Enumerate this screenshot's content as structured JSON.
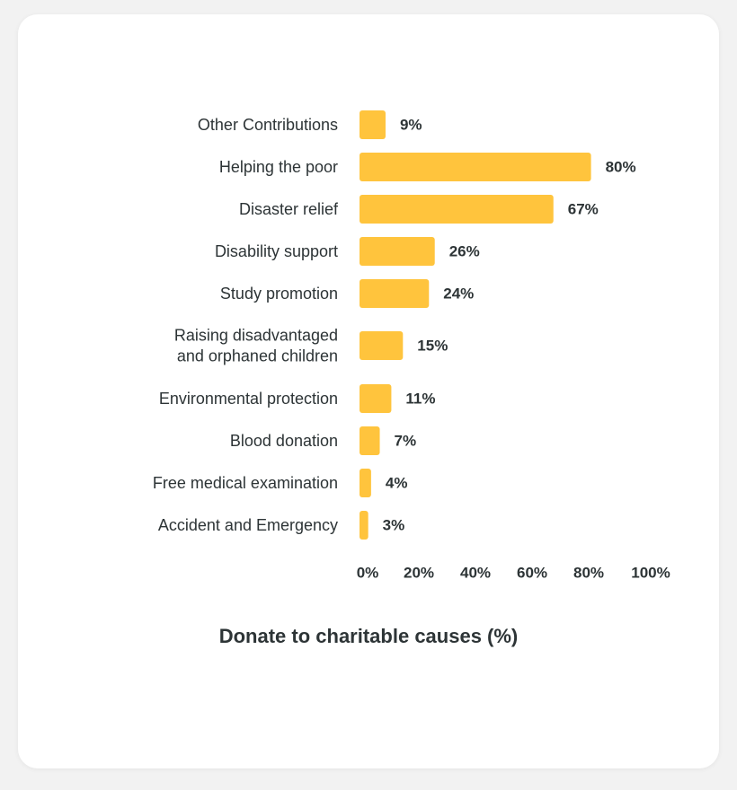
{
  "chart_data": {
    "type": "bar",
    "orientation": "horizontal",
    "title": "Donate to charitable causes (%)",
    "categories": [
      "Other Contributions",
      "Helping the poor",
      "Disaster relief",
      "Disability support",
      "Study promotion",
      "Raising disadvantaged and orphaned children",
      "Environmental protection",
      "Blood donation",
      "Free medical examination",
      "Accident and Emergency"
    ],
    "values": [
      9,
      80,
      67,
      26,
      24,
      15,
      11,
      7,
      4,
      3
    ],
    "value_labels": [
      "9%",
      "80%",
      "67%",
      "26%",
      "24%",
      "15%",
      "11%",
      "7%",
      "4%",
      "3%"
    ],
    "xlim": [
      0,
      100
    ],
    "xticks": [
      "0%",
      "20%",
      "40%",
      "60%",
      "80%",
      "100%"
    ],
    "grid": false,
    "bar_color": "#ffc43d"
  }
}
